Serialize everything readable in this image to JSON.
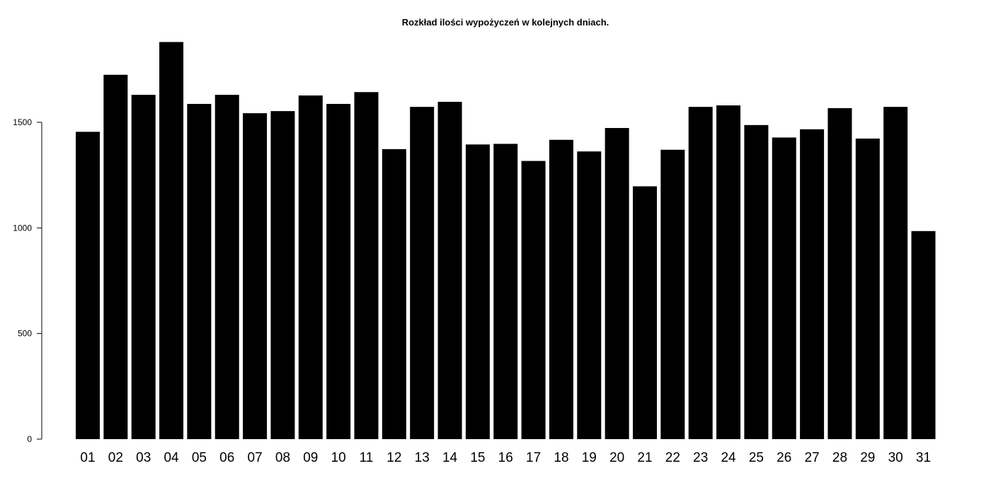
{
  "chart_data": {
    "type": "bar",
    "title": "Rozkład ilości wypożyczeń w kolejnych dniach.",
    "xlabel": "",
    "ylabel": "",
    "categories": [
      "01",
      "02",
      "03",
      "04",
      "05",
      "06",
      "07",
      "08",
      "09",
      "10",
      "11",
      "12",
      "13",
      "14",
      "15",
      "16",
      "17",
      "18",
      "19",
      "20",
      "21",
      "22",
      "23",
      "24",
      "25",
      "26",
      "27",
      "28",
      "29",
      "30",
      "31"
    ],
    "values": [
      1455,
      1725,
      1630,
      1880,
      1587,
      1630,
      1543,
      1553,
      1627,
      1587,
      1643,
      1373,
      1573,
      1597,
      1395,
      1398,
      1317,
      1417,
      1362,
      1473,
      1197,
      1370,
      1573,
      1580,
      1487,
      1428,
      1467,
      1567,
      1423,
      1573,
      985
    ],
    "yticks": [
      0,
      500,
      1000,
      1500
    ],
    "ytick_labels": [
      "0",
      "500",
      "1000",
      "1500"
    ],
    "ylim": [
      0,
      1880
    ],
    "bar_color": "#000000",
    "grid": false,
    "legend": "none"
  }
}
